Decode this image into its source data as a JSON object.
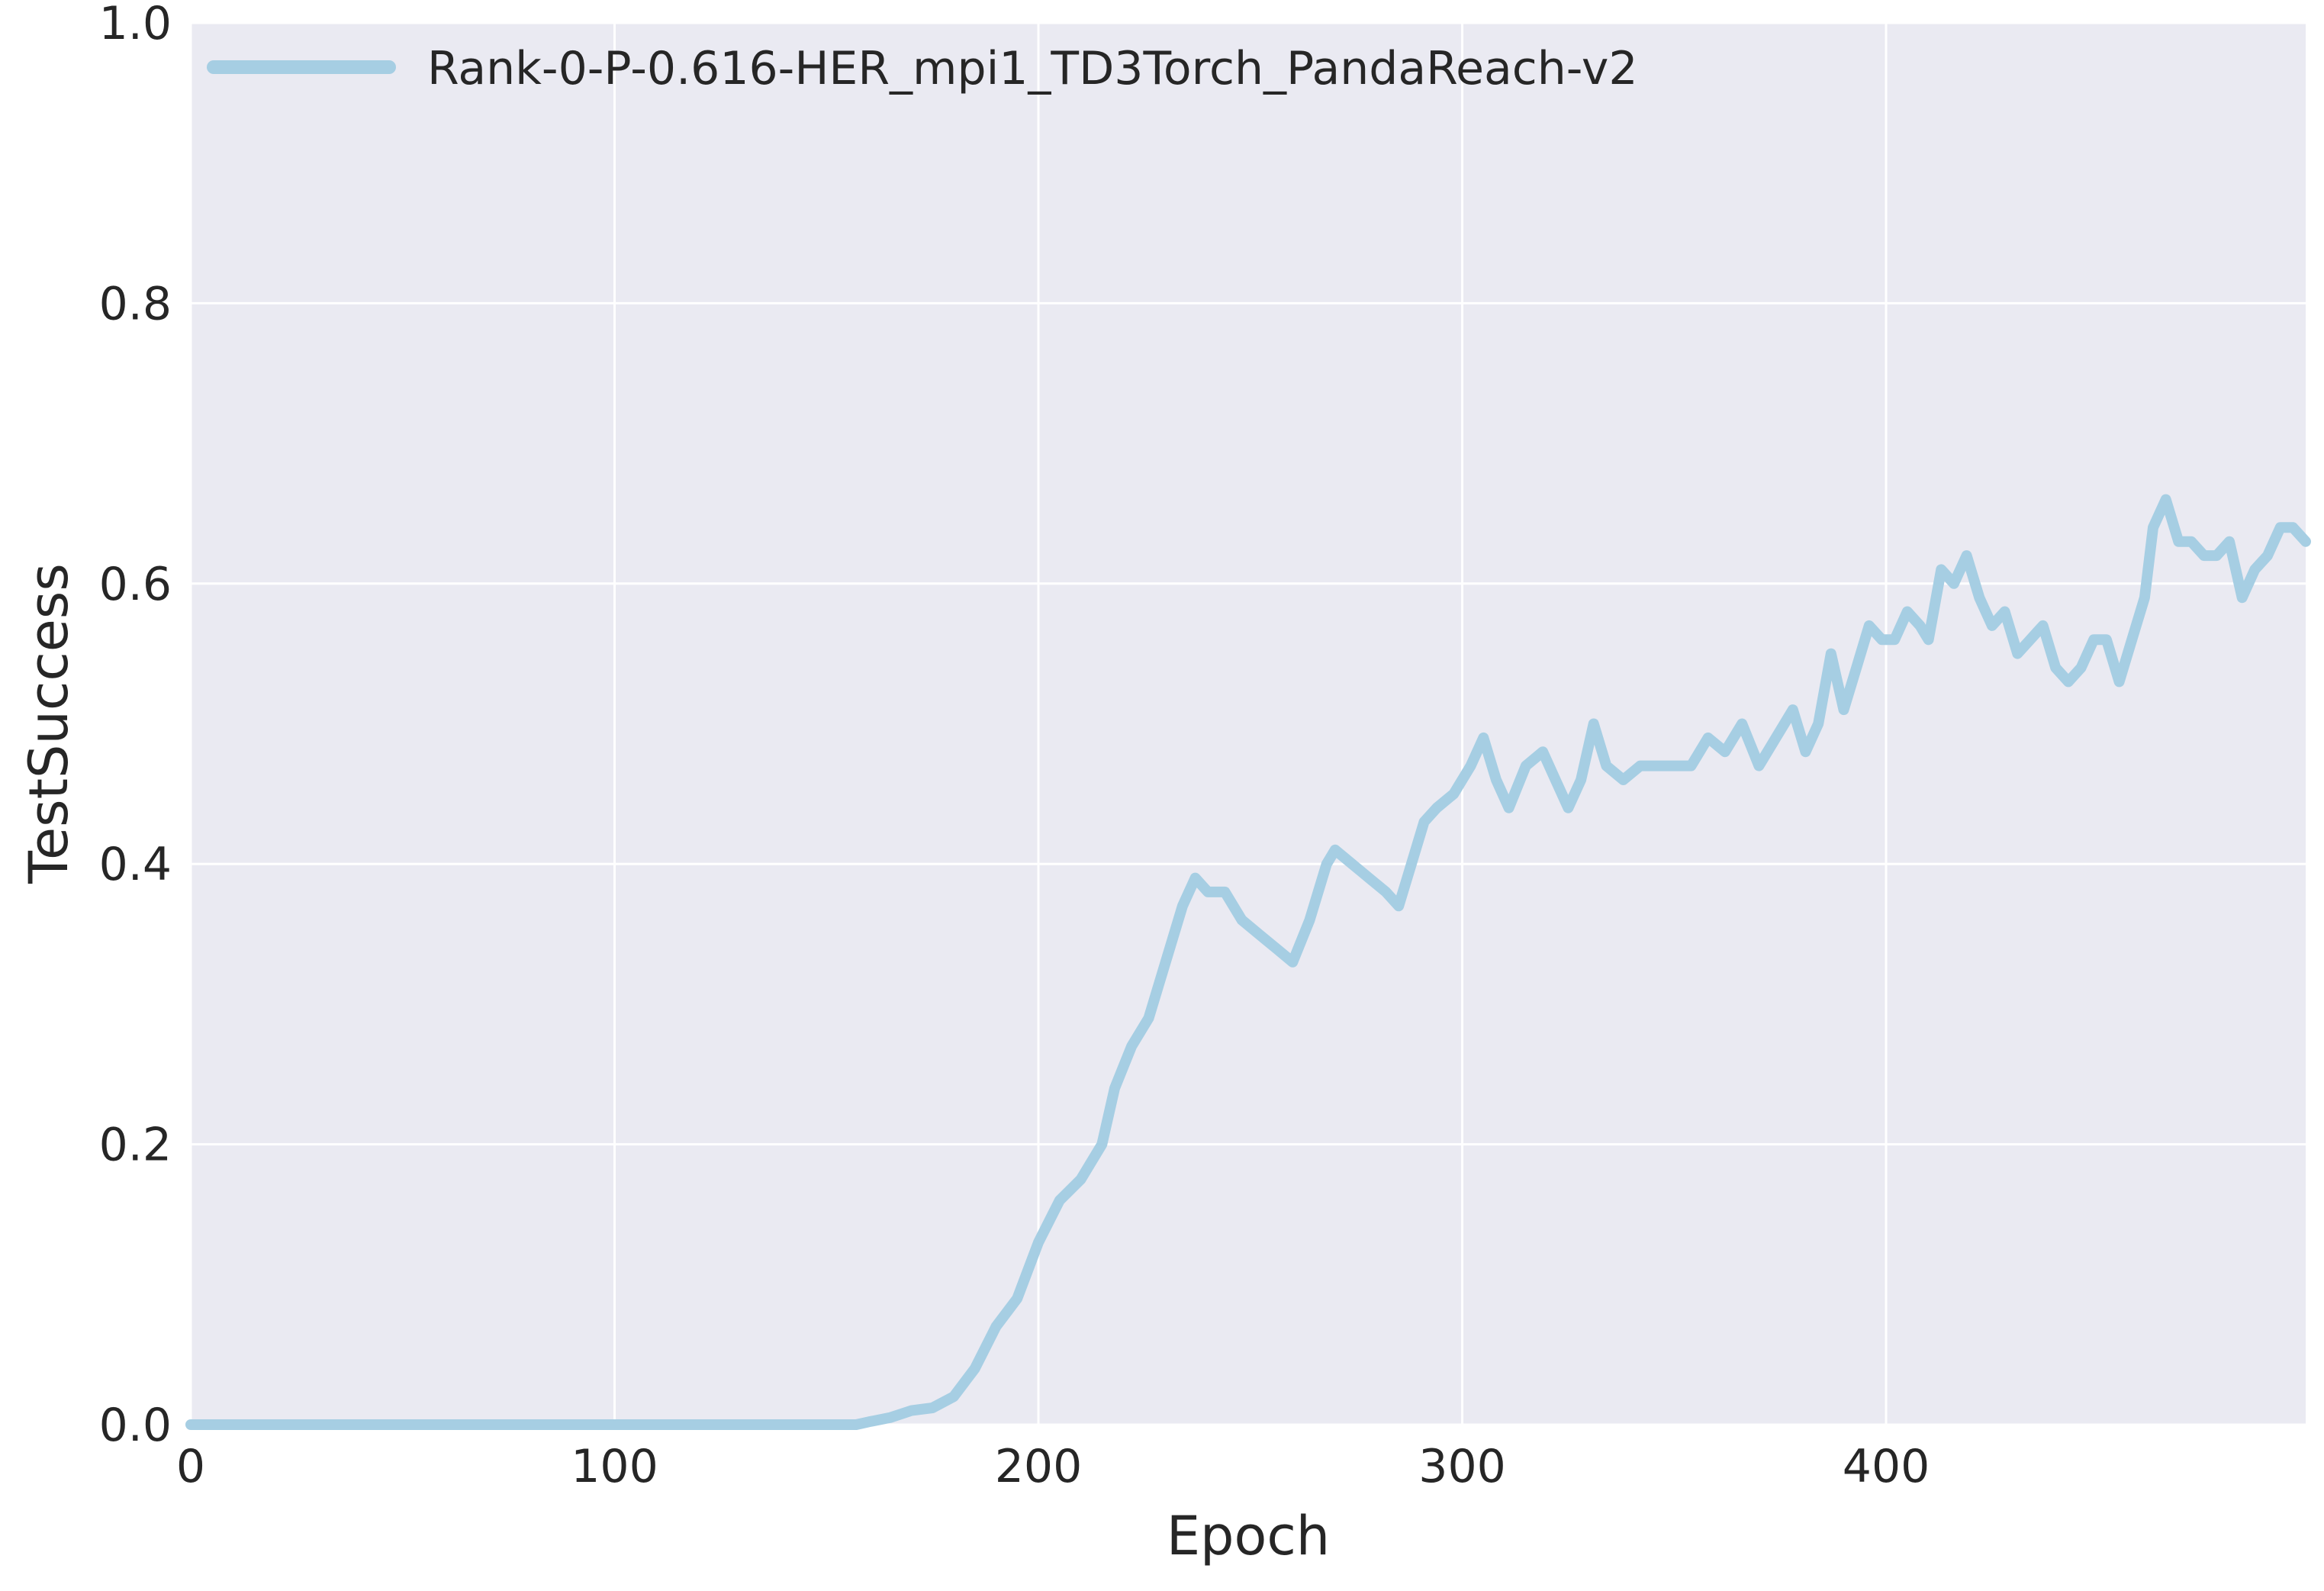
{
  "chart_data": {
    "type": "line",
    "title": "",
    "xlabel": "Epoch",
    "ylabel": "TestSuccess",
    "xlim": [
      0,
      499
    ],
    "ylim": [
      0,
      1.0
    ],
    "xticks": [
      0,
      100,
      200,
      300,
      400
    ],
    "xtick_labels": [
      "0",
      "100",
      "200",
      "300",
      "400"
    ],
    "yticks": [
      0,
      0.2,
      0.4,
      0.6,
      0.8,
      1.0
    ],
    "ytick_labels": [
      "0.0",
      "0.2",
      "0.4",
      "0.6",
      "0.8",
      "1.0"
    ],
    "grid": true,
    "legend_position": "top-left",
    "colors": {
      "plot_background": "#eaeaf2",
      "grid": "#ffffff",
      "text": "#262626"
    },
    "series": [
      {
        "name": "Rank-0-P-0.616-HER_mpi1_TD3Torch_PandaReach-v2",
        "color": "#a6cee3",
        "x": [
          0,
          157,
          160,
          165,
          170,
          175,
          180,
          185,
          190,
          195,
          200,
          205,
          210,
          215,
          218,
          222,
          226,
          230,
          234,
          237,
          240,
          244,
          248,
          252,
          256,
          260,
          264,
          268,
          270,
          274,
          278,
          282,
          285,
          288,
          291,
          294,
          298,
          302,
          305,
          308,
          311,
          315,
          319,
          322,
          325,
          328,
          331,
          334,
          338,
          342,
          346,
          350,
          354,
          358,
          362,
          366,
          370,
          374,
          378,
          381,
          384,
          387,
          390,
          393,
          396,
          399,
          402,
          405,
          408,
          410,
          413,
          416,
          419,
          422,
          425,
          428,
          431,
          434,
          437,
          440,
          443,
          446,
          449,
          452,
          455,
          458,
          461,
          463,
          466,
          469,
          472,
          475,
          478,
          481,
          484,
          487,
          490,
          493,
          496,
          499
        ],
        "values": [
          0.0,
          0.0,
          0.002,
          0.005,
          0.01,
          0.012,
          0.02,
          0.04,
          0.07,
          0.09,
          0.13,
          0.16,
          0.175,
          0.2,
          0.24,
          0.27,
          0.29,
          0.33,
          0.37,
          0.39,
          0.38,
          0.38,
          0.36,
          0.35,
          0.34,
          0.33,
          0.36,
          0.4,
          0.41,
          0.4,
          0.39,
          0.38,
          0.37,
          0.4,
          0.43,
          0.44,
          0.45,
          0.47,
          0.49,
          0.46,
          0.44,
          0.47,
          0.48,
          0.46,
          0.44,
          0.46,
          0.5,
          0.47,
          0.46,
          0.47,
          0.47,
          0.47,
          0.47,
          0.49,
          0.48,
          0.5,
          0.47,
          0.49,
          0.51,
          0.48,
          0.5,
          0.55,
          0.51,
          0.54,
          0.57,
          0.56,
          0.56,
          0.58,
          0.57,
          0.56,
          0.61,
          0.6,
          0.62,
          0.59,
          0.57,
          0.58,
          0.55,
          0.56,
          0.57,
          0.54,
          0.53,
          0.54,
          0.56,
          0.56,
          0.53,
          0.56,
          0.59,
          0.64,
          0.66,
          0.63,
          0.63,
          0.62,
          0.62,
          0.63,
          0.59,
          0.61,
          0.62,
          0.64,
          0.64,
          0.63
        ]
      }
    ]
  }
}
